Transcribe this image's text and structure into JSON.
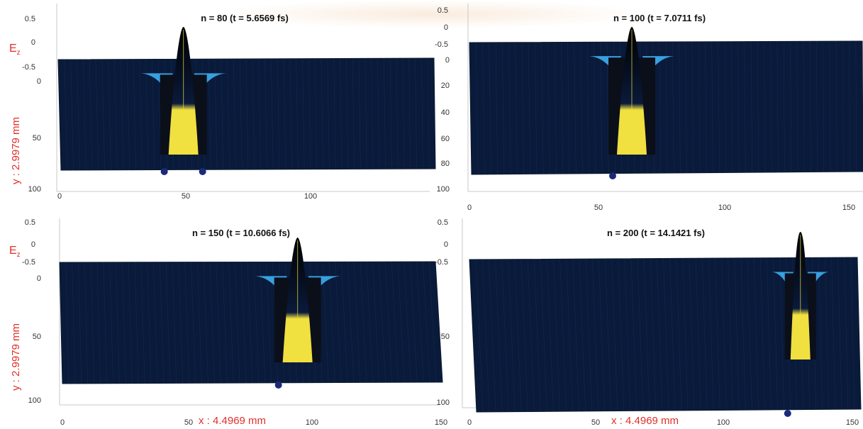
{
  "chart_data": [
    {
      "type": "surface",
      "title": "n = 80 (t = 5.6569 fs)",
      "z_axis_label": "E",
      "z_axis_label_sub": "z",
      "z_ticks": [
        "0.5",
        "0",
        "-0.5"
      ],
      "y_axis_label": "y : 2.9979 mm",
      "y_ticks": [
        "0",
        "50",
        "100"
      ],
      "x_ticks": [
        "0",
        "50",
        "100"
      ],
      "x_axis_label": "",
      "ylim": [
        0,
        100
      ],
      "xlim": [
        0,
        150
      ],
      "pulse_center_x": 50,
      "pulse_peak_z": 0.5,
      "colormap": [
        "#0a1a3a",
        "#1f4f86",
        "#38a0e0",
        "#f0e040"
      ]
    },
    {
      "type": "surface",
      "title": "n = 100 (t = 7.0711 fs)",
      "z_ticks": [
        "0.5",
        "0",
        "-0.5"
      ],
      "y_ticks": [
        "0",
        "20",
        "40",
        "60",
        "80",
        "100"
      ],
      "x_ticks": [
        "0",
        "50",
        "100",
        "150"
      ],
      "x_axis_label": "",
      "ylim": [
        0,
        100
      ],
      "xlim": [
        0,
        150
      ],
      "pulse_center_x": 62,
      "pulse_peak_z": 0.5,
      "colormap": [
        "#0a1a3a",
        "#1f4f86",
        "#38a0e0",
        "#f0e040"
      ]
    },
    {
      "type": "surface",
      "title": "n = 150 (t = 10.6066 fs)",
      "z_axis_label": "E",
      "z_axis_label_sub": "z",
      "z_ticks": [
        "0.5",
        "0",
        "-0.5"
      ],
      "y_axis_label": "y : 2.9979 mm",
      "y_ticks": [
        "0",
        "50",
        "100"
      ],
      "x_ticks": [
        "0",
        "50",
        "100",
        "150"
      ],
      "x_axis_label": "x : 4.4969 mm",
      "ylim": [
        0,
        100
      ],
      "xlim": [
        0,
        150
      ],
      "pulse_center_x": 95,
      "pulse_peak_z": 0.5,
      "colormap": [
        "#0a1a3a",
        "#1f4f86",
        "#38a0e0",
        "#f0e040"
      ]
    },
    {
      "type": "surface",
      "title": "n = 200 (t = 14.1421 fs)",
      "z_ticks": [
        "0.5",
        "0",
        "-0.5"
      ],
      "y_ticks": [
        "50",
        "100"
      ],
      "x_ticks": [
        "0",
        "50",
        "100",
        "150"
      ],
      "x_axis_label": "x : 4.4969 mm",
      "ylim": [
        0,
        100
      ],
      "xlim": [
        0,
        150
      ],
      "pulse_center_x": 128,
      "pulse_peak_z": 0.5,
      "colormap": [
        "#0a1a3a",
        "#1f4f86",
        "#38a0e0",
        "#f0e040"
      ]
    }
  ]
}
